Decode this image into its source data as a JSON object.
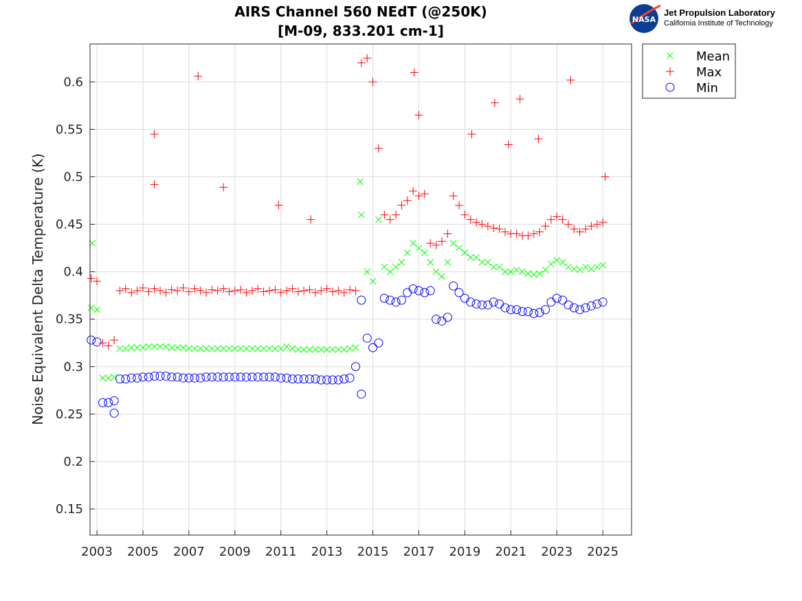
{
  "logo": {
    "agency": "NASA",
    "line1": "Jet Propulsion Laboratory",
    "line2": "California Institute of Technology"
  },
  "chart_data": {
    "type": "scatter",
    "title": [
      "AIRS Channel 560 NEdT (@250K)",
      "[M-09, 833.201 cm-1]"
    ],
    "xlabel": "",
    "ylabel": "Noise Equivalent Delta Temperature (K)",
    "xlim": [
      2002.7,
      2026.25
    ],
    "ylim": [
      0.1225,
      0.64
    ],
    "xticks": [
      2003,
      2005,
      2007,
      2009,
      2011,
      2013,
      2015,
      2017,
      2019,
      2021,
      2023,
      2025
    ],
    "yticks": [
      0.15,
      0.2,
      0.25,
      0.3,
      0.35,
      0.4,
      0.45,
      0.5,
      0.55,
      0.6
    ],
    "ytick_labels": [
      "0.15",
      "0.2",
      "0.25",
      "0.3",
      "0.35",
      "0.4",
      "0.45",
      "0.5",
      "0.55",
      "0.6"
    ],
    "grid": true,
    "legend_placement": "outside-top-right",
    "x": [
      2002.75,
      2003.0,
      2003.25,
      2003.5,
      2003.75,
      2004.0,
      2004.25,
      2004.5,
      2004.75,
      2005.0,
      2005.25,
      2005.5,
      2005.75,
      2006.0,
      2006.25,
      2006.5,
      2006.75,
      2007.0,
      2007.25,
      2007.5,
      2007.75,
      2008.0,
      2008.25,
      2008.5,
      2008.75,
      2009.0,
      2009.25,
      2009.5,
      2009.75,
      2010.0,
      2010.25,
      2010.5,
      2010.75,
      2011.0,
      2011.25,
      2011.5,
      2011.75,
      2012.0,
      2012.25,
      2012.5,
      2012.75,
      2013.0,
      2013.25,
      2013.5,
      2013.75,
      2014.0,
      2014.25,
      2014.5,
      2014.75,
      2015.0,
      2015.25,
      2015.5,
      2015.75,
      2016.0,
      2016.25,
      2016.5,
      2016.75,
      2017.0,
      2017.25,
      2017.5,
      2017.75,
      2018.0,
      2018.25,
      2018.5,
      2018.75,
      2019.0,
      2019.25,
      2019.5,
      2019.75,
      2020.0,
      2020.25,
      2020.5,
      2020.75,
      2021.0,
      2021.25,
      2021.5,
      2021.75,
      2022.0,
      2022.25,
      2022.5,
      2022.75,
      2023.0,
      2023.25,
      2023.5,
      2023.75,
      2024.0,
      2024.25,
      2024.5,
      2024.75,
      2025.0
    ],
    "series": [
      {
        "name": "Mean",
        "marker": "x",
        "color": "#00ff00",
        "values": [
          0.362,
          0.36,
          0.288,
          0.288,
          0.289,
          0.319,
          0.319,
          0.32,
          0.32,
          0.32,
          0.321,
          0.321,
          0.321,
          0.321,
          0.32,
          0.32,
          0.32,
          0.319,
          0.319,
          0.319,
          0.319,
          0.319,
          0.319,
          0.319,
          0.319,
          0.319,
          0.319,
          0.319,
          0.319,
          0.319,
          0.319,
          0.319,
          0.319,
          0.319,
          0.321,
          0.319,
          0.318,
          0.318,
          0.318,
          0.318,
          0.318,
          0.318,
          0.318,
          0.318,
          0.318,
          0.319,
          0.32,
          0.46,
          0.4,
          0.39,
          0.455,
          0.405,
          0.4,
          0.405,
          0.41,
          0.42,
          0.43,
          0.425,
          0.42,
          0.41,
          0.4,
          0.395,
          0.41,
          0.43,
          0.425,
          0.42,
          0.415,
          0.415,
          0.41,
          0.41,
          0.405,
          0.405,
          0.4,
          0.4,
          0.402,
          0.4,
          0.398,
          0.397,
          0.398,
          0.402,
          0.408,
          0.412,
          0.41,
          0.405,
          0.403,
          0.402,
          0.405,
          0.403,
          0.405,
          0.407
        ]
      },
      {
        "name": "Max",
        "marker": "+",
        "color": "#ff0000",
        "values": [
          0.393,
          0.39,
          0.325,
          0.322,
          0.328,
          0.38,
          0.382,
          0.378,
          0.38,
          0.383,
          0.379,
          0.382,
          0.38,
          0.378,
          0.381,
          0.38,
          0.383,
          0.379,
          0.382,
          0.38,
          0.378,
          0.381,
          0.38,
          0.382,
          0.379,
          0.38,
          0.381,
          0.378,
          0.38,
          0.382,
          0.379,
          0.38,
          0.381,
          0.378,
          0.38,
          0.382,
          0.379,
          0.38,
          0.381,
          0.378,
          0.38,
          0.382,
          0.379,
          0.38,
          0.378,
          0.381,
          0.38,
          0.62,
          0.625,
          0.6,
          0.53,
          0.46,
          0.455,
          0.46,
          0.47,
          0.475,
          0.485,
          0.48,
          0.482,
          0.43,
          0.428,
          0.432,
          0.44,
          0.48,
          0.47,
          0.46,
          0.455,
          0.452,
          0.45,
          0.448,
          0.446,
          0.445,
          0.442,
          0.44,
          0.44,
          0.438,
          0.438,
          0.44,
          0.442,
          0.448,
          0.455,
          0.458,
          0.455,
          0.45,
          0.445,
          0.442,
          0.445,
          0.448,
          0.45,
          0.452
        ]
      },
      {
        "name": "Min",
        "marker": "o",
        "color": "#0000ff",
        "values": [
          0.328,
          0.326,
          0.262,
          0.262,
          0.264,
          0.287,
          0.287,
          0.288,
          0.288,
          0.289,
          0.289,
          0.29,
          0.29,
          0.29,
          0.289,
          0.289,
          0.288,
          0.288,
          0.288,
          0.288,
          0.289,
          0.289,
          0.289,
          0.289,
          0.289,
          0.289,
          0.289,
          0.289,
          0.289,
          0.289,
          0.289,
          0.289,
          0.289,
          0.288,
          0.288,
          0.287,
          0.287,
          0.287,
          0.287,
          0.287,
          0.286,
          0.286,
          0.286,
          0.286,
          0.287,
          0.288,
          0.3,
          0.37,
          0.33,
          0.32,
          0.325,
          0.372,
          0.37,
          0.368,
          0.37,
          0.378,
          0.382,
          0.38,
          0.378,
          0.38,
          0.35,
          0.348,
          0.352,
          0.385,
          0.378,
          0.372,
          0.368,
          0.366,
          0.365,
          0.365,
          0.368,
          0.366,
          0.362,
          0.36,
          0.36,
          0.358,
          0.358,
          0.356,
          0.357,
          0.36,
          0.368,
          0.372,
          0.37,
          0.365,
          0.362,
          0.36,
          0.362,
          0.364,
          0.366,
          0.368
        ]
      }
    ],
    "outliers": [
      {
        "series": "Mean",
        "x": 2002.8,
        "y": 0.43
      },
      {
        "series": "Mean",
        "x": 2014.45,
        "y": 0.495
      },
      {
        "series": "Max",
        "x": 2005.5,
        "y": 0.545
      },
      {
        "series": "Max",
        "x": 2005.5,
        "y": 0.492
      },
      {
        "series": "Max",
        "x": 2007.4,
        "y": 0.606
      },
      {
        "series": "Max",
        "x": 2008.5,
        "y": 0.489
      },
      {
        "series": "Max",
        "x": 2010.9,
        "y": 0.47
      },
      {
        "series": "Max",
        "x": 2012.3,
        "y": 0.455
      },
      {
        "series": "Max",
        "x": 2016.8,
        "y": 0.61
      },
      {
        "series": "Max",
        "x": 2017.0,
        "y": 0.565
      },
      {
        "series": "Max",
        "x": 2019.3,
        "y": 0.545
      },
      {
        "series": "Max",
        "x": 2020.3,
        "y": 0.578
      },
      {
        "series": "Max",
        "x": 2020.9,
        "y": 0.534
      },
      {
        "series": "Max",
        "x": 2021.4,
        "y": 0.582
      },
      {
        "series": "Max",
        "x": 2022.2,
        "y": 0.54
      },
      {
        "series": "Max",
        "x": 2023.6,
        "y": 0.602
      },
      {
        "series": "Max",
        "x": 2025.1,
        "y": 0.5
      },
      {
        "series": "Min",
        "x": 2003.75,
        "y": 0.251
      },
      {
        "series": "Min",
        "x": 2014.5,
        "y": 0.271
      }
    ]
  }
}
